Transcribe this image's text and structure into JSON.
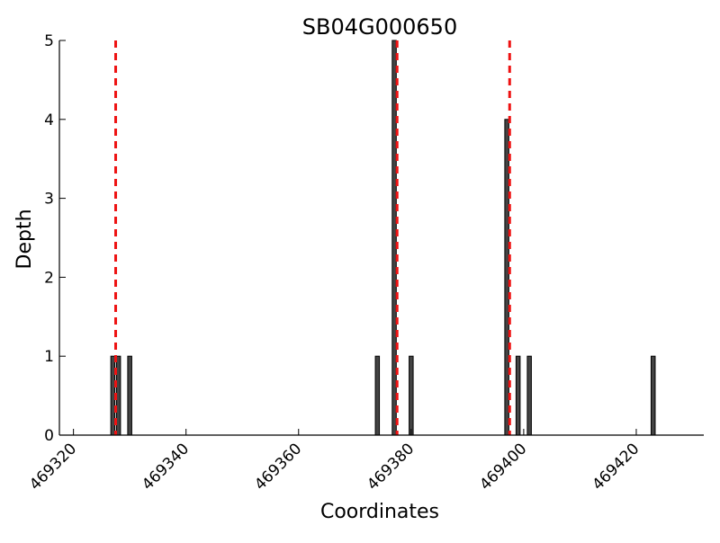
{
  "chart_data": {
    "type": "bar",
    "title": "SB04G000650",
    "xlabel": "Coordinates",
    "ylabel": "Depth",
    "xlim": [
      469317.5,
      469432
    ],
    "ylim": [
      0,
      5
    ],
    "xticks": [
      469320,
      469340,
      469360,
      469380,
      469400,
      469420
    ],
    "yticks": [
      0,
      1,
      2,
      3,
      4,
      5
    ],
    "grid": false,
    "legend": "none",
    "bar_color": "#444444",
    "bar_edge_color": "#000000",
    "bar_width": 1.0,
    "bars": [
      {
        "x": 469327,
        "value": 1
      },
      {
        "x": 469328,
        "value": 1
      },
      {
        "x": 469330,
        "value": 1
      },
      {
        "x": 469374,
        "value": 1
      },
      {
        "x": 469377,
        "value": 5
      },
      {
        "x": 469380,
        "value": 1
      },
      {
        "x": 469397,
        "value": 4
      },
      {
        "x": 469399,
        "value": 1
      },
      {
        "x": 469401,
        "value": 1
      },
      {
        "x": 469423,
        "value": 1
      }
    ],
    "reference_lines": {
      "type": "vertical dashed",
      "color": "#ee1111",
      "x": [
        469327.5,
        469377.5,
        469397.5
      ]
    }
  }
}
